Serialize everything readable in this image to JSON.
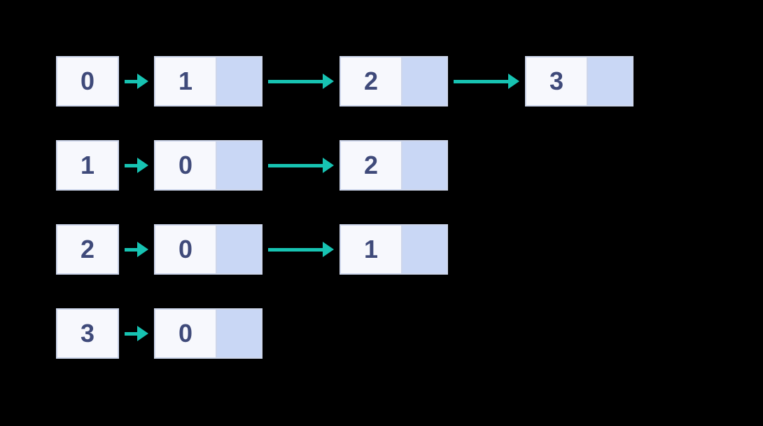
{
  "diagram": {
    "type": "adjacency-list",
    "background_color": "#000000",
    "colors": {
      "head_box_bg": "#f7f8fd",
      "head_box_border": "#cdd6eb",
      "node_value_bg": "#f7f8fd",
      "node_value_border": "#cdd6eb",
      "node_pointer_bg": "#c9d7f5",
      "node_pointer_border": "#cdd6eb",
      "text_color": "#3f4a7a",
      "arrow_color": "#17c3b2"
    },
    "dimensions": {
      "head_box_width": 90,
      "head_box_height": 72,
      "node_value_width": 90,
      "node_pointer_width": 65,
      "short_arrow_width": 50,
      "long_arrow_width": 110,
      "row_gap": 48,
      "font_size": 36
    },
    "rows": [
      {
        "head": "0",
        "nodes": [
          "1",
          "2",
          "3"
        ]
      },
      {
        "head": "1",
        "nodes": [
          "0",
          "2"
        ]
      },
      {
        "head": "2",
        "nodes": [
          "0",
          "1"
        ]
      },
      {
        "head": "3",
        "nodes": [
          "0"
        ]
      }
    ]
  }
}
